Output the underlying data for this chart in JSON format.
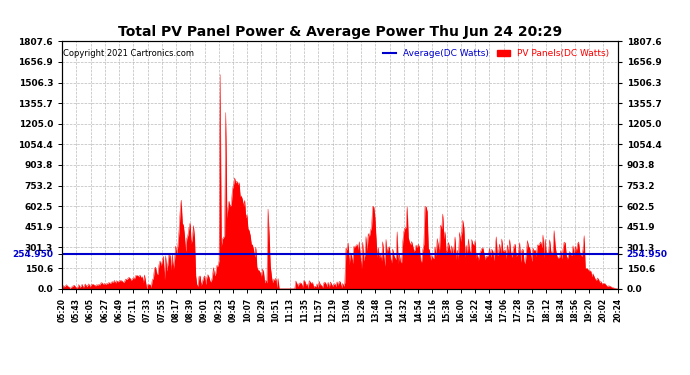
{
  "title": "Total PV Panel Power & Average Power Thu Jun 24 20:29",
  "copyright": "Copyright 2021 Cartronics.com",
  "legend_avg": "Average(DC Watts)",
  "legend_pv": "PV Panels(DC Watts)",
  "y_max": 1807.6,
  "y_min": 0.0,
  "y_ticks": [
    0.0,
    150.6,
    301.3,
    451.9,
    602.5,
    753.2,
    903.8,
    1054.4,
    1205.0,
    1355.7,
    1506.3,
    1656.9,
    1807.6
  ],
  "avg_line_y": 254.95,
  "avg_line_label": "254.950",
  "bg_color": "#ffffff",
  "plot_bg_color": "#ffffff",
  "grid_color": "#aaaaaa",
  "fill_color": "#ff0000",
  "avg_line_color": "#0000cd",
  "title_color": "#000000",
  "copyright_color": "#000000",
  "legend_avg_color": "#0000cd",
  "legend_pv_color": "#ff0000",
  "x_tick_labels": [
    "05:20",
    "05:43",
    "06:05",
    "06:27",
    "06:49",
    "07:11",
    "07:33",
    "07:55",
    "08:17",
    "08:39",
    "09:01",
    "09:23",
    "09:45",
    "10:07",
    "10:29",
    "10:51",
    "11:13",
    "11:35",
    "11:57",
    "12:19",
    "13:04",
    "13:26",
    "13:48",
    "14:10",
    "14:32",
    "14:54",
    "15:16",
    "15:38",
    "16:00",
    "16:22",
    "16:44",
    "17:06",
    "17:28",
    "17:50",
    "18:12",
    "18:34",
    "18:56",
    "19:20",
    "20:02",
    "20:24"
  ]
}
